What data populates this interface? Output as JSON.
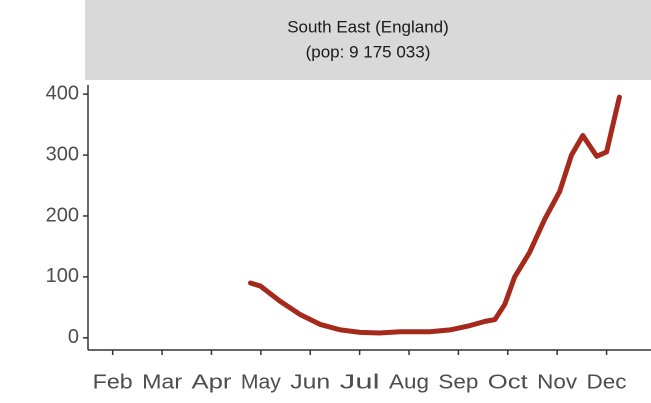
{
  "chart_data": {
    "type": "line",
    "title": "South East (England)",
    "subtitle": "(pop: 9 175 033)",
    "x": [
      4.79,
      4.99,
      5.39,
      5.8,
      6.2,
      6.61,
      7.01,
      7.41,
      7.82,
      8.42,
      8.83,
      9.23,
      9.54,
      9.74,
      9.94,
      10.14,
      10.44,
      10.75,
      11.05,
      11.29,
      11.52,
      11.66,
      11.8,
      12.0,
      12.26
    ],
    "series": [
      {
        "color": "#a52a1c",
        "values": [
          90,
          85,
          60,
          38,
          22,
          13,
          9,
          8,
          10,
          10,
          13,
          20,
          27,
          30,
          55,
          100,
          140,
          195,
          240,
          300,
          332,
          315,
          298,
          305,
          395
        ]
      }
    ],
    "xlim": [
      1.5,
      12.9
    ],
    "xticks": [
      {
        "value": 2,
        "label": "Feb"
      },
      {
        "value": 3,
        "label": "Mar"
      },
      {
        "value": 4,
        "label": "Apr"
      },
      {
        "value": 5,
        "label": "May"
      },
      {
        "value": 6,
        "label": "Jun"
      },
      {
        "value": 7,
        "label": "Jul"
      },
      {
        "value": 8,
        "label": "Aug"
      },
      {
        "value": 9,
        "label": "Sep"
      },
      {
        "value": 10,
        "label": "Oct"
      },
      {
        "value": 11,
        "label": "Nov"
      },
      {
        "value": 12,
        "label": "Dec"
      }
    ],
    "ylim": [
      -20,
      415
    ],
    "yticks": [
      0,
      100,
      200,
      300,
      400
    ],
    "grid": false
  }
}
